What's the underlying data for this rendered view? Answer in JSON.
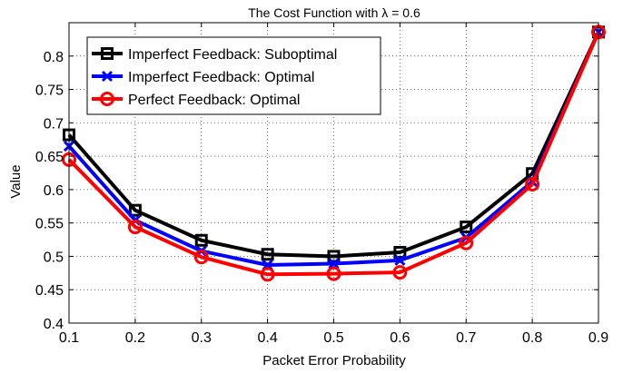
{
  "chart_data": {
    "type": "line",
    "title": "The Cost Function with λ = 0.6",
    "xlabel": "Packet Error Probability",
    "ylabel": "Value",
    "x": [
      0.1,
      0.2,
      0.3,
      0.4,
      0.5,
      0.6,
      0.7,
      0.8,
      0.9
    ],
    "xlim": [
      0.1,
      0.9
    ],
    "ylim": [
      0.4,
      0.85
    ],
    "xticks": [
      "0.1",
      "0.2",
      "0.3",
      "0.4",
      "0.5",
      "0.6",
      "0.7",
      "0.8",
      "0.9"
    ],
    "yticks": [
      "0.4",
      "0.45",
      "0.5",
      "0.55",
      "0.6",
      "0.65",
      "0.7",
      "0.75",
      "0.8"
    ],
    "grid": true,
    "legend_position": "top-left",
    "series": [
      {
        "name": "Imperfect Feedback: Suboptimal",
        "color": "#000000",
        "marker": "square",
        "values": [
          0.682,
          0.569,
          0.524,
          0.503,
          0.5,
          0.506,
          0.544,
          0.624,
          0.836
        ]
      },
      {
        "name": "Imperfect Feedback: Optimal",
        "color": "#0000ff",
        "marker": "x",
        "values": [
          0.665,
          0.554,
          0.508,
          0.487,
          0.489,
          0.494,
          0.528,
          0.612,
          0.836
        ]
      },
      {
        "name": "Perfect Feedback: Optimal",
        "color": "#ff0000",
        "marker": "circle",
        "values": [
          0.645,
          0.544,
          0.499,
          0.473,
          0.474,
          0.476,
          0.52,
          0.608,
          0.836
        ]
      }
    ]
  }
}
